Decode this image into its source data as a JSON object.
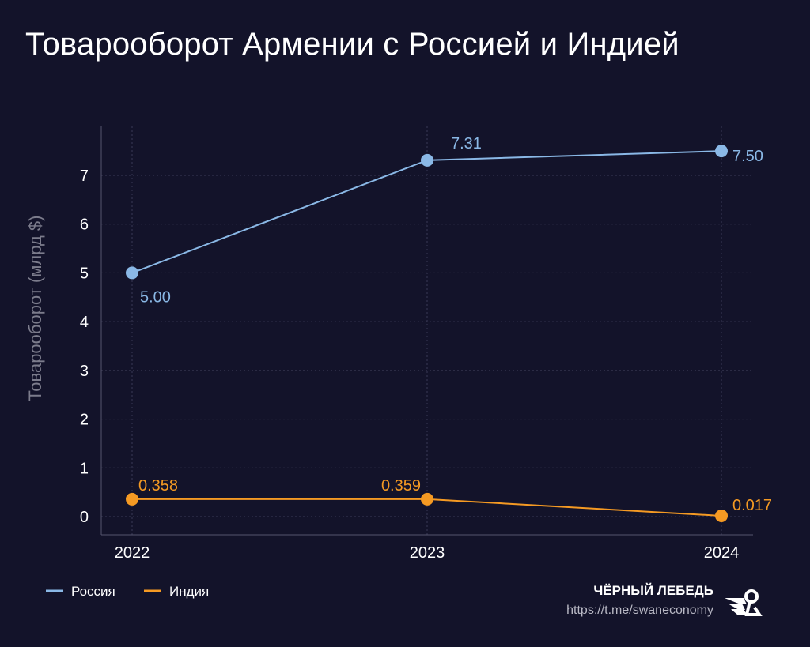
{
  "title": "Товарооборот Армении с Россией и Индией",
  "chart_data": {
    "type": "line",
    "title": "Товарооборот Армении с Россией и Индией",
    "xlabel": "",
    "ylabel": "Товарооборот (млрд $)",
    "categories": [
      "2022",
      "2023",
      "2024"
    ],
    "yticks": [
      0,
      1,
      2,
      3,
      4,
      5,
      6,
      7
    ],
    "ylim": [
      -0.4,
      8
    ],
    "grid": true,
    "legend": "bottom-left",
    "series": [
      {
        "name": "Россия",
        "color": "#8ab8e6",
        "values": [
          5.0,
          7.31,
          7.5
        ],
        "labels": [
          "5.00",
          "7.31",
          "7.50"
        ]
      },
      {
        "name": "Индия",
        "color": "#f59a23",
        "values": [
          0.358,
          0.359,
          0.017
        ],
        "labels": [
          "0.358",
          "0.359",
          "0.017"
        ]
      }
    ]
  },
  "footer": {
    "brand": "ЧЁРНЫЙ ЛЕБЕДЬ",
    "url": "https://t.me/swaneconomy",
    "logo_icon": "swan-logo-icon"
  }
}
